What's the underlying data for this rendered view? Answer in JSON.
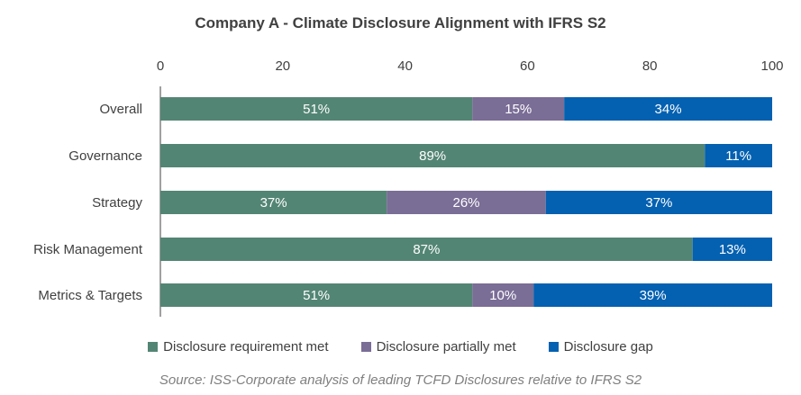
{
  "chart_data": {
    "type": "bar",
    "orientation": "horizontal",
    "stacked": true,
    "title": "Company A - Climate Disclosure Alignment with IFRS S2",
    "source": "Source: ISS-Corporate analysis of leading TCFD Disclosures relative to IFRS S2",
    "categories": [
      "Overall",
      "Governance",
      "Strategy",
      "Risk Management",
      "Metrics & Targets"
    ],
    "series": [
      {
        "name": "Disclosure requirement met",
        "values": [
          51,
          89,
          37,
          87,
          51
        ],
        "labels": [
          "51%",
          "89%",
          "37%",
          "87%",
          "51%"
        ],
        "color": "#538574"
      },
      {
        "name": "Disclosure partially met",
        "values": [
          15,
          0,
          26,
          0,
          10
        ],
        "labels": [
          "15%",
          "",
          "26%",
          "",
          "10%"
        ],
        "color": "#7a6d96"
      },
      {
        "name": "Disclosure gap",
        "values": [
          34,
          11,
          37,
          13,
          39
        ],
        "labels": [
          "34%",
          "11%",
          "37%",
          "13%",
          "39%"
        ],
        "color": "#0461b1"
      }
    ],
    "xlim": [
      0,
      100
    ],
    "xticks": [
      "0",
      "20",
      "40",
      "60",
      "80",
      "100"
    ],
    "axis_position": "top",
    "grid": false,
    "legend_position": "bottom"
  }
}
